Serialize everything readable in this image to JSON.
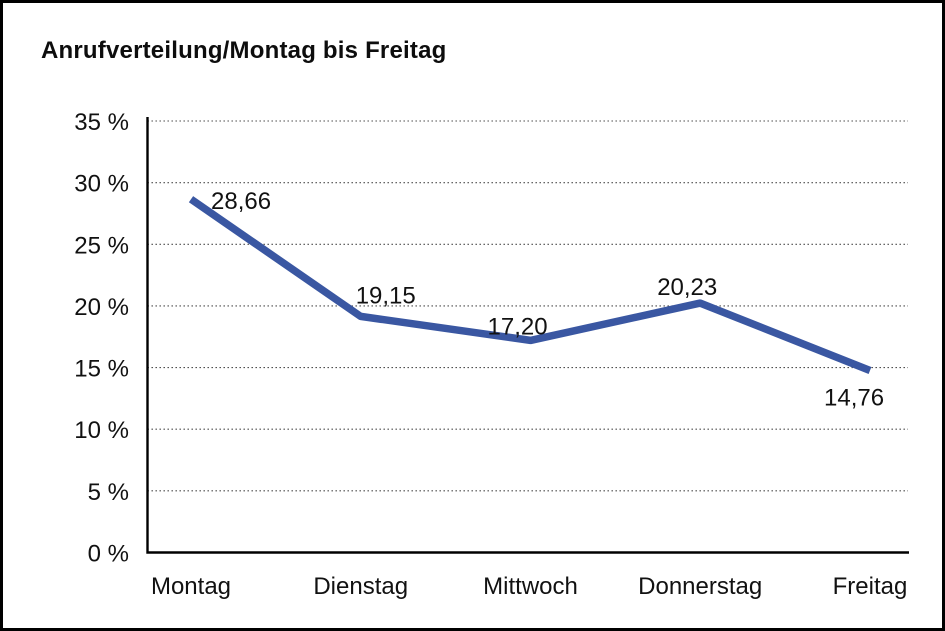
{
  "window": {
    "background": "#ffffff",
    "frame_color": "#000000"
  },
  "chart_data": {
    "type": "line",
    "title": "Anrufverteilung/Montag bis Freitag",
    "categories": [
      "Montag",
      "Dienstag",
      "Mittwoch",
      "Donnerstag",
      "Freitag"
    ],
    "series": [
      {
        "name": "Anrufverteilung",
        "values": [
          28.66,
          19.15,
          17.2,
          20.23,
          14.76
        ]
      }
    ],
    "data_labels": [
      "28,66",
      "19,15",
      "17,20",
      "20,23",
      "14,76"
    ],
    "y_ticks": [
      "35 %",
      "30 %",
      "25 %",
      "20 %",
      "15 %",
      "10 %",
      "5 %",
      "0 %"
    ],
    "y_tick_values": [
      35,
      30,
      25,
      20,
      15,
      10,
      5,
      0
    ],
    "ylim": [
      0,
      35
    ],
    "xlabel": "",
    "ylabel": "",
    "grid": "horizontal dotted",
    "legend": "none",
    "line_color": "#3A57A2",
    "axis_color": "#000000",
    "text_color": "#111111"
  }
}
